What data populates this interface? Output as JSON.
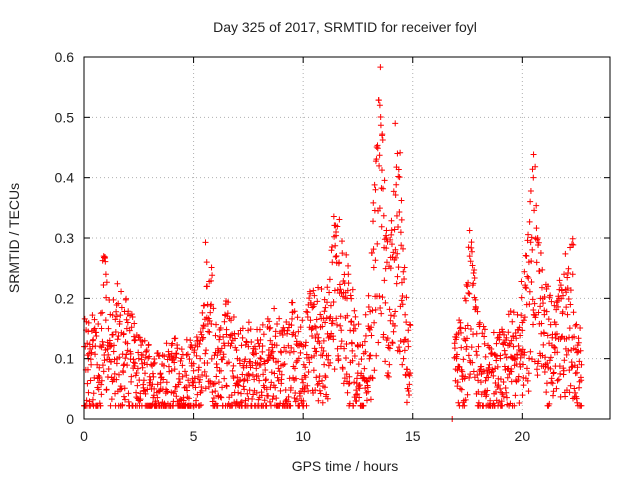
{
  "chart_data": {
    "type": "scatter",
    "title": "Day 325 of 2017, SRMTID for receiver foyl",
    "xlabel": "GPS time / hours",
    "ylabel": "SRMTID / TECUs",
    "xlim": [
      0,
      24
    ],
    "ylim": [
      0,
      0.6
    ],
    "xticks": [
      0,
      5,
      10,
      15,
      20
    ],
    "xtick_labels": [
      "0",
      "5",
      "10",
      "15",
      "20"
    ],
    "yticks": [
      0,
      0.1,
      0.2,
      0.3,
      0.4,
      0.5,
      0.6
    ],
    "ytick_labels": [
      "0",
      "0.1",
      "0.2",
      "0.3",
      "0.4",
      "0.5",
      "0.6"
    ],
    "grid": true,
    "marker": "+",
    "color": "#ff0000",
    "series": [
      {
        "name": "SRMTID",
        "data_segments": [
          {
            "x_start": 0.0,
            "x_end": 14.9
          },
          {
            "x_start": 16.7,
            "x_end": 16.8
          },
          {
            "x_start": 16.9,
            "x_end": 22.7
          }
        ],
        "points": [
          [
            0.0,
            0.12
          ],
          [
            0.2,
            0.1
          ],
          [
            0.4,
            0.13
          ],
          [
            0.6,
            0.09
          ],
          [
            0.8,
            0.15
          ],
          [
            0.9,
            0.27
          ],
          [
            1.0,
            0.24
          ],
          [
            1.2,
            0.12
          ],
          [
            1.5,
            0.17
          ],
          [
            1.8,
            0.14
          ],
          [
            2.0,
            0.16
          ],
          [
            2.3,
            0.13
          ],
          [
            2.5,
            0.1
          ],
          [
            3.0,
            0.07
          ],
          [
            3.2,
            0.05
          ],
          [
            3.5,
            0.06
          ],
          [
            4.0,
            0.08
          ],
          [
            4.5,
            0.07
          ],
          [
            5.0,
            0.08
          ],
          [
            5.3,
            0.1
          ],
          [
            5.6,
            0.26
          ],
          [
            5.8,
            0.19
          ],
          [
            6.0,
            0.11
          ],
          [
            6.5,
            0.14
          ],
          [
            7.0,
            0.1
          ],
          [
            7.5,
            0.12
          ],
          [
            8.0,
            0.09
          ],
          [
            8.5,
            0.13
          ],
          [
            9.0,
            0.11
          ],
          [
            9.5,
            0.14
          ],
          [
            10.0,
            0.12
          ],
          [
            10.5,
            0.19
          ],
          [
            11.0,
            0.16
          ],
          [
            11.5,
            0.31
          ],
          [
            12.0,
            0.2
          ],
          [
            12.5,
            0.12
          ],
          [
            13.0,
            0.15
          ],
          [
            13.3,
            0.38
          ],
          [
            13.5,
            0.52
          ],
          [
            13.6,
            0.47
          ],
          [
            13.8,
            0.3
          ],
          [
            14.0,
            0.25
          ],
          [
            14.2,
            0.49
          ],
          [
            14.3,
            0.44
          ],
          [
            14.5,
            0.33
          ],
          [
            14.8,
            0.12
          ],
          [
            16.8,
            0.0
          ],
          [
            17.0,
            0.1
          ],
          [
            17.4,
            0.15
          ],
          [
            17.6,
            0.27
          ],
          [
            18.0,
            0.12
          ],
          [
            18.5,
            0.09
          ],
          [
            19.0,
            0.1
          ],
          [
            19.5,
            0.13
          ],
          [
            20.0,
            0.16
          ],
          [
            20.3,
            0.26
          ],
          [
            20.5,
            0.4
          ],
          [
            20.7,
            0.3
          ],
          [
            21.0,
            0.18
          ],
          [
            21.5,
            0.14
          ],
          [
            22.0,
            0.21
          ],
          [
            22.3,
            0.24
          ],
          [
            22.5,
            0.11
          ],
          [
            22.7,
            0.09
          ]
        ]
      }
    ]
  }
}
